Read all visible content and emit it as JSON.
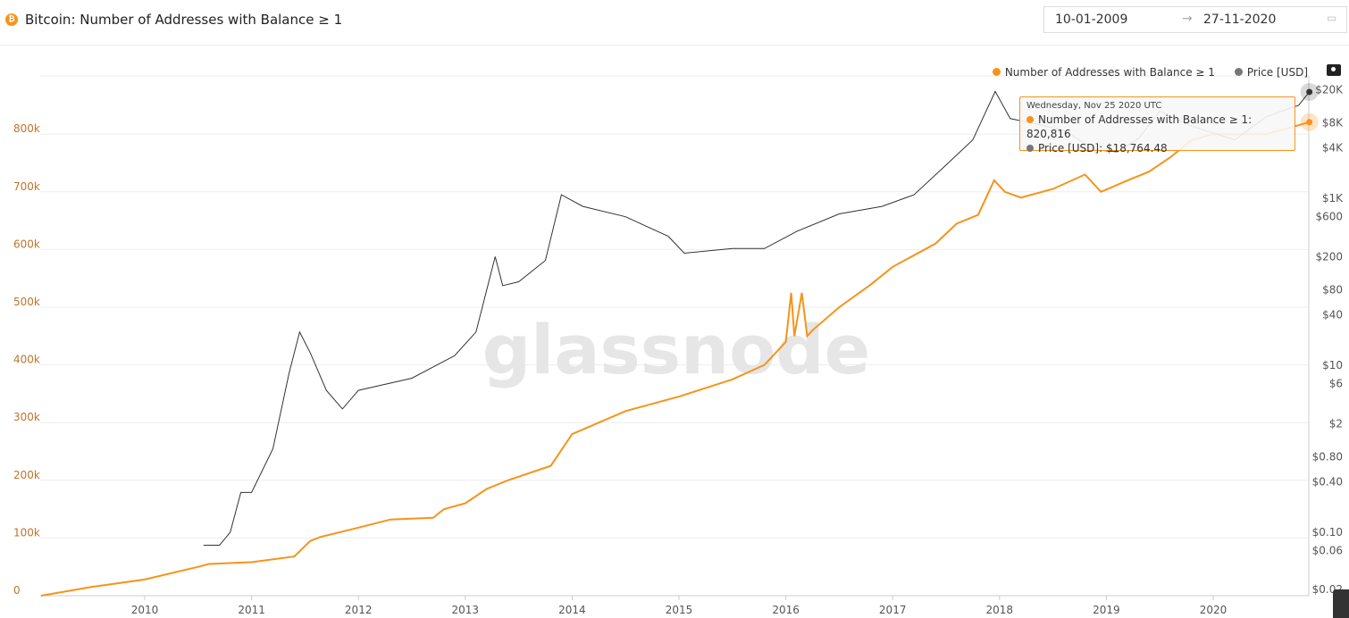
{
  "header": {
    "title": "Bitcoin: Number of Addresses with Balance ≥ 1",
    "icon": "bitcoin-icon",
    "date_from": "10-01-2009",
    "date_arrow": "→",
    "date_to": "27-11-2020",
    "calendar_icon": "calendar-icon"
  },
  "watermark": "glassnode",
  "tooltip": {
    "date": "Wednesday, Nov 25 2020 UTC",
    "addresses_label": "Number of Addresses with Balance ≥ 1",
    "addresses_value": "820,816",
    "price_label": "Price [USD]",
    "price_value": "$18,764.48"
  },
  "colors": {
    "addresses": "#f7931a",
    "price": "#333333",
    "grid": "#eeeeee",
    "left_tick": "#c0732a"
  },
  "chart_data": {
    "type": "line",
    "title": "Bitcoin: Number of Addresses with Balance ≥ 1",
    "legend": {
      "placement": "top-right",
      "entries": [
        "Number of Addresses with Balance ≥ 1",
        "Price [USD]"
      ]
    },
    "x_ticks": [
      "2010",
      "2011",
      "2012",
      "2013",
      "2014",
      "2015",
      "2016",
      "2017",
      "2018",
      "2019",
      "2020"
    ],
    "xlim": [
      "2009-01-10",
      "2020-11-27"
    ],
    "y_left": {
      "ticks": [
        "0",
        "100k",
        "200k",
        "300k",
        "400k",
        "500k",
        "600k",
        "700k",
        "800k"
      ],
      "ylim": [
        0,
        820000
      ],
      "grid": true
    },
    "y_right": {
      "scale": "log",
      "ticks": [
        "$20K",
        "$8K",
        "$4K",
        "$1K",
        "$600",
        "$200",
        "$80",
        "$40",
        "$10",
        "$6",
        "$2",
        "$0.80",
        "$0.40",
        "$0.10",
        "$0.06",
        "$0.02"
      ],
      "tick_values": [
        20000,
        8000,
        4000,
        1000,
        600,
        200,
        80,
        40,
        10,
        6,
        2,
        0.8,
        0.4,
        0.1,
        0.06,
        0.02
      ]
    },
    "series": [
      {
        "name": "Number of Addresses with Balance ≥ 1",
        "axis": "left",
        "x": [
          2009.03,
          2009.5,
          2010,
          2010.5,
          2010.6,
          2011,
          2011.4,
          2011.55,
          2011.65,
          2012,
          2012.3,
          2012.7,
          2012.8,
          2013,
          2013.2,
          2013.4,
          2013.8,
          2014,
          2014.5,
          2015,
          2015.5,
          2015.8,
          2016,
          2016.05,
          2016.08,
          2016.15,
          2016.2,
          2016.25,
          2016.5,
          2016.8,
          2017,
          2017.4,
          2017.6,
          2017.8,
          2017.95,
          2018.05,
          2018.2,
          2018.5,
          2018.8,
          2018.95,
          2019.2,
          2019.4,
          2019.6,
          2019.8,
          2020,
          2020.5,
          2020.9
        ],
        "y": [
          0,
          15000,
          28000,
          50000,
          55000,
          58000,
          68000,
          95000,
          102000,
          118000,
          132000,
          135000,
          150000,
          160000,
          185000,
          200000,
          225000,
          280000,
          320000,
          345000,
          375000,
          400000,
          440000,
          525000,
          450000,
          525000,
          450000,
          460000,
          500000,
          540000,
          570000,
          610000,
          645000,
          660000,
          720000,
          700000,
          690000,
          705000,
          730000,
          700000,
          720000,
          735000,
          760000,
          790000,
          800000,
          800000,
          820816
        ]
      },
      {
        "name": "Price [USD]",
        "axis": "right",
        "x": [
          2010.55,
          2010.7,
          2010.8,
          2010.9,
          2011,
          2011.2,
          2011.35,
          2011.45,
          2011.55,
          2011.7,
          2011.85,
          2012,
          2012.5,
          2012.9,
          2013.1,
          2013.28,
          2013.35,
          2013.5,
          2013.75,
          2013.9,
          2014.1,
          2014.5,
          2014.9,
          2015.05,
          2015.5,
          2015.8,
          2016.1,
          2016.5,
          2016.9,
          2017.2,
          2017.5,
          2017.75,
          2017.96,
          2018.1,
          2018.3,
          2018.6,
          2018.9,
          2019.1,
          2019.3,
          2019.5,
          2019.8,
          2020.2,
          2020.5,
          2020.8,
          2020.9
        ],
        "y": [
          0.07,
          0.07,
          0.1,
          0.3,
          0.3,
          1,
          8,
          25,
          14,
          5,
          3,
          5,
          7,
          13,
          25,
          200,
          90,
          100,
          180,
          1100,
          800,
          600,
          350,
          220,
          250,
          250,
          400,
          650,
          800,
          1100,
          2500,
          5000,
          19000,
          9000,
          8000,
          6500,
          3800,
          3600,
          5200,
          11000,
          7300,
          5000,
          9500,
          13000,
          18764
        ]
      }
    ]
  }
}
